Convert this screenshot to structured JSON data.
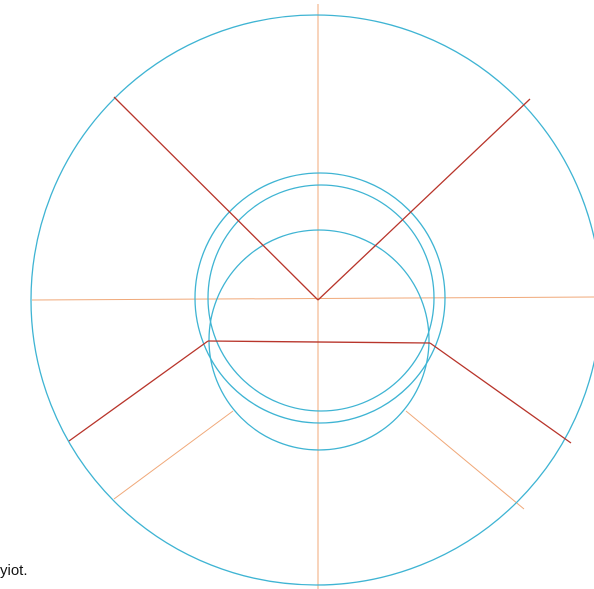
{
  "caption": "yiot.",
  "colors": {
    "circle": "#3fb4d3",
    "guide": "#f0a97a",
    "main_line": "#b8352b"
  }
}
